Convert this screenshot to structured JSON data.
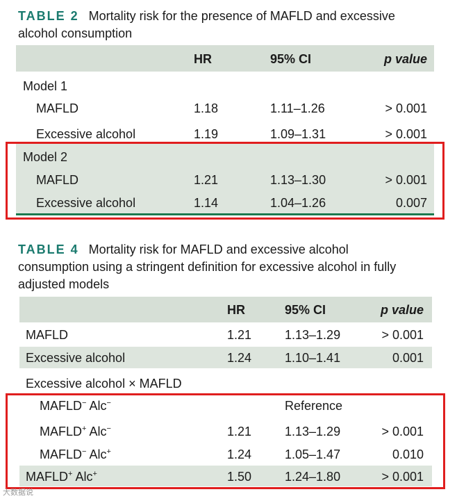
{
  "table2": {
    "label": "TABLE 2",
    "title_line1": "Mortality risk for the presence of MAFLD and excessive",
    "title_line2": "alcohol consumption",
    "headers": {
      "hr": "HR",
      "ci": "95% CI",
      "p": "p value"
    },
    "model1": {
      "label": "Model 1",
      "rows": [
        {
          "name": "MAFLD",
          "hr": "1.18",
          "ci": "1.11–1.26",
          "p": "> 0.001"
        },
        {
          "name": "Excessive alcohol",
          "hr": "1.19",
          "ci": "1.09–1.31",
          "p": "> 0.001"
        }
      ]
    },
    "model2": {
      "label": "Model 2",
      "rows": [
        {
          "name": "MAFLD",
          "hr": "1.21",
          "ci": "1.13–1.30",
          "p": "> 0.001"
        },
        {
          "name": "Excessive alcohol",
          "hr": "1.14",
          "ci": "1.04–1.26",
          "p": "0.007"
        }
      ]
    }
  },
  "table4": {
    "label": "TABLE 4",
    "title_line1": "Mortality risk for MAFLD and excessive alcohol",
    "title_line2": "consumption using a stringent definition for excessive alcohol in fully",
    "title_line3": "adjusted models",
    "headers": {
      "hr": "HR",
      "ci": "95% CI",
      "p": "p value"
    },
    "rows": [
      {
        "name": "MAFLD",
        "hr": "1.21",
        "ci": "1.13–1.29",
        "p": "> 0.001"
      },
      {
        "name": "Excessive alcohol",
        "hr": "1.24",
        "ci": "1.10–1.41",
        "p": "0.001"
      }
    ],
    "interaction_label": "Excessive alcohol × MAFLD",
    "interaction_rows": [
      {
        "name": "MAFLD",
        "s1": "−",
        "mid": " Alc",
        "s2": "−",
        "hr": "",
        "ci": "Reference",
        "p": ""
      },
      {
        "name": "MAFLD",
        "s1": "+",
        "mid": " Alc",
        "s2": "−",
        "hr": "1.21",
        "ci": "1.13–1.29",
        "p": "> 0.001"
      },
      {
        "name": "MAFLD",
        "s1": "−",
        "mid": " Alc",
        "s2": "+",
        "hr": "1.24",
        "ci": "1.05–1.47",
        "p": "0.010"
      },
      {
        "name": "MAFLD",
        "s1": "+",
        "mid": " Alc",
        "s2": "+",
        "hr": "1.50",
        "ci": "1.24–1.80",
        "p": "> 0.001"
      }
    ]
  },
  "watermark": "大数据说"
}
